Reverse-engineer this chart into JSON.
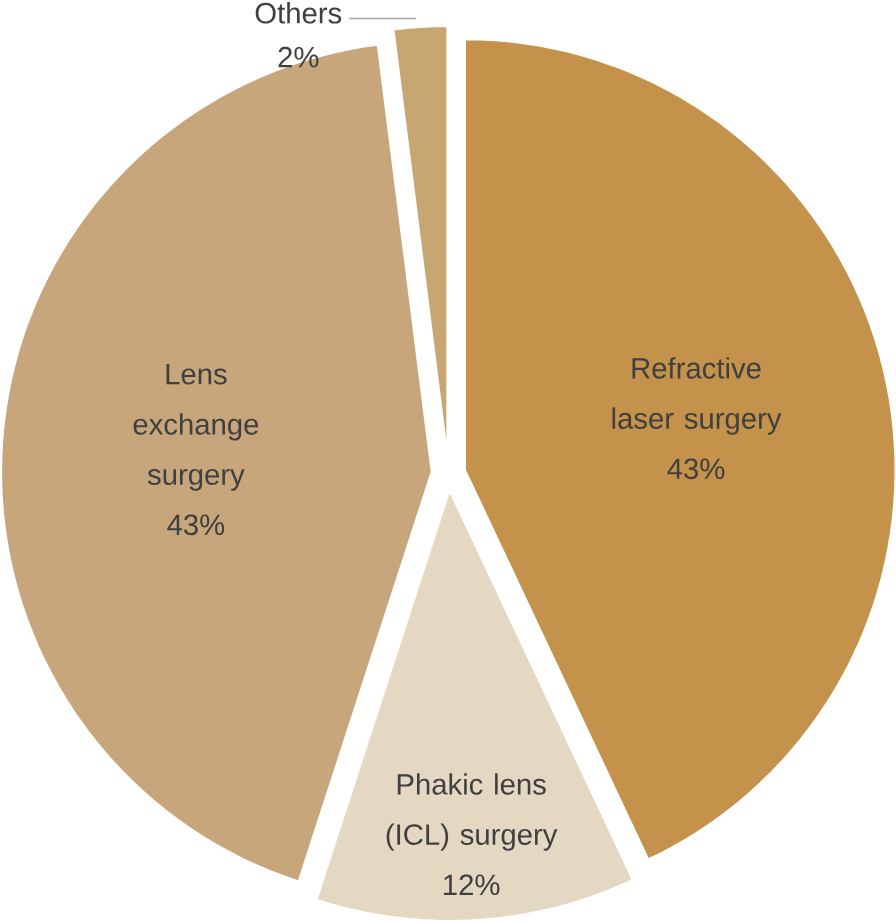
{
  "chart_data": {
    "type": "pie",
    "categories": [
      "Refractive laser surgery",
      "Phakic lens (ICL) surgery",
      "Lens exchange surgery",
      "Others"
    ],
    "values": [
      43,
      12,
      43,
      2
    ],
    "value_labels": [
      "43%",
      "12%",
      "43%",
      "2%"
    ],
    "colors": [
      "#c4924a",
      "#e5d8c3",
      "#c6a67a",
      "#c8a672"
    ]
  }
}
